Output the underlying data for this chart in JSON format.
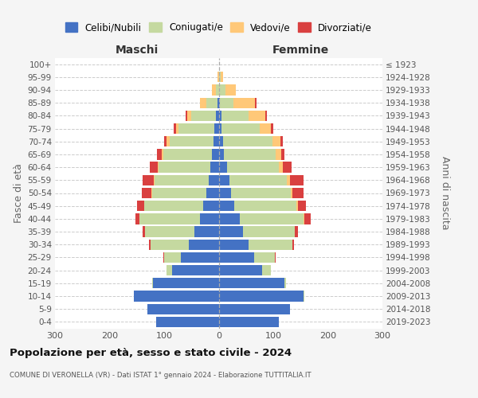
{
  "age_groups": [
    "0-4",
    "5-9",
    "10-14",
    "15-19",
    "20-24",
    "25-29",
    "30-34",
    "35-39",
    "40-44",
    "45-49",
    "50-54",
    "55-59",
    "60-64",
    "65-69",
    "70-74",
    "75-79",
    "80-84",
    "85-89",
    "90-94",
    "95-99",
    "100+"
  ],
  "birth_years": [
    "2019-2023",
    "2014-2018",
    "2009-2013",
    "2004-2008",
    "1999-2003",
    "1994-1998",
    "1989-1993",
    "1984-1988",
    "1979-1983",
    "1974-1978",
    "1969-1973",
    "1964-1968",
    "1959-1963",
    "1954-1958",
    "1949-1953",
    "1944-1948",
    "1939-1943",
    "1934-1938",
    "1929-1933",
    "1924-1928",
    "≤ 1923"
  ],
  "colors": {
    "celibi": "#4472c4",
    "coniugati": "#c5d9a0",
    "vedovi": "#ffc878",
    "divorziati": "#d94040"
  },
  "maschi": {
    "celibi": [
      115,
      130,
      155,
      120,
      85,
      70,
      55,
      45,
      35,
      28,
      22,
      18,
      15,
      12,
      10,
      8,
      5,
      2,
      0,
      0,
      0
    ],
    "coniugati": [
      0,
      0,
      1,
      2,
      10,
      30,
      70,
      90,
      110,
      108,
      100,
      100,
      95,
      90,
      80,
      65,
      45,
      20,
      5,
      0,
      0
    ],
    "vedovi": [
      0,
      0,
      0,
      0,
      0,
      0,
      0,
      0,
      0,
      1,
      1,
      1,
      2,
      3,
      5,
      5,
      8,
      12,
      8,
      2,
      0
    ],
    "divorziati": [
      0,
      0,
      0,
      0,
      0,
      2,
      3,
      5,
      8,
      12,
      18,
      20,
      15,
      8,
      5,
      5,
      2,
      0,
      0,
      0,
      0
    ]
  },
  "femmine": {
    "celibi": [
      110,
      130,
      155,
      120,
      80,
      65,
      55,
      45,
      38,
      28,
      22,
      20,
      15,
      10,
      8,
      5,
      5,
      2,
      0,
      0,
      0
    ],
    "coniugati": [
      0,
      0,
      2,
      3,
      15,
      38,
      80,
      95,
      118,
      115,
      110,
      105,
      95,
      95,
      90,
      70,
      50,
      25,
      12,
      3,
      0
    ],
    "vedovi": [
      0,
      0,
      0,
      0,
      0,
      0,
      0,
      0,
      1,
      2,
      3,
      5,
      8,
      10,
      15,
      20,
      30,
      40,
      20,
      5,
      0
    ],
    "divorziati": [
      0,
      0,
      0,
      0,
      0,
      2,
      3,
      5,
      12,
      15,
      20,
      25,
      15,
      5,
      5,
      5,
      3,
      2,
      0,
      0,
      0
    ]
  },
  "title": "Popolazione per età, sesso e stato civile - 2024",
  "subtitle": "COMUNE DI VERONELLA (VR) - Dati ISTAT 1° gennaio 2024 - Elaborazione TUTTITALIA.IT",
  "xlabel_left": "Maschi",
  "xlabel_right": "Femmine",
  "ylabel_left": "Fasce di età",
  "ylabel_right": "Anni di nascita",
  "xlim": 300,
  "legend_labels": [
    "Celibi/Nubili",
    "Coniugati/e",
    "Vedovi/e",
    "Divorziati/e"
  ],
  "bg_color": "#f5f5f5",
  "plot_bg": "#ffffff",
  "grid_color": "#cccccc"
}
